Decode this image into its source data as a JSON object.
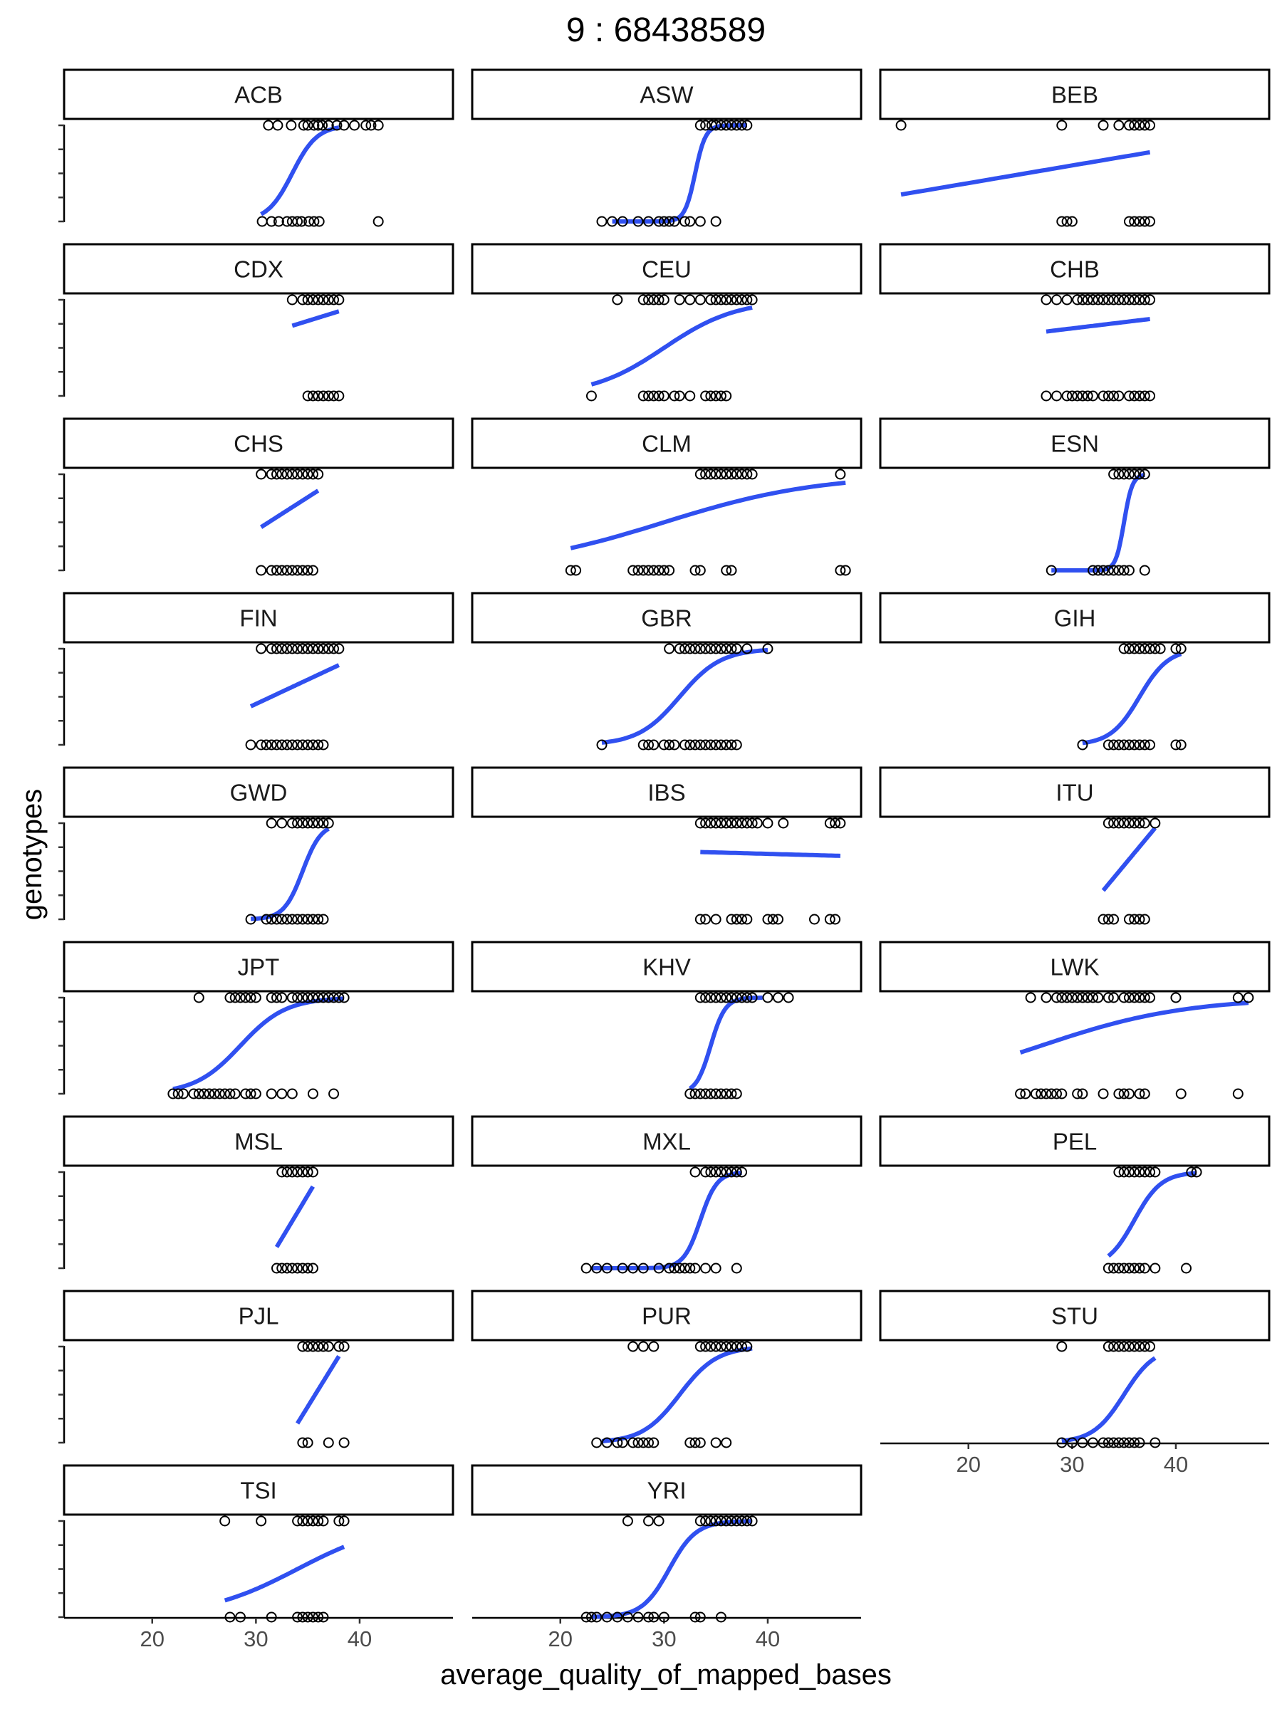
{
  "chart_data": {
    "type": "scatter",
    "title": "9 : 68438589",
    "xlabel": "average_quality_of_mapped_bases",
    "ylabel": "genotypes",
    "xlim": [
      11.5,
      49
    ],
    "x_ticks": [
      20,
      30,
      40
    ],
    "x_tick_labels": [
      "20",
      "30",
      "40"
    ],
    "facet_layout": {
      "ncol": 3,
      "nrow": 9
    },
    "panels": [
      {
        "name": "ACB",
        "fit": [
          30.5,
          38.0
        ],
        "fit_shape": "sigmoid",
        "fit_mid": 33.5,
        "fit_scale": 1.2,
        "x_top": [
          31.2,
          32.1,
          33.4,
          34.6,
          35.0,
          35.6,
          36.0,
          36.4,
          37.0,
          37.8,
          38.5,
          39.5,
          40.6,
          41.1,
          41.8
        ],
        "x_bottom": [
          30.6,
          31.5,
          32.2,
          33.0,
          33.5,
          34.0,
          34.4,
          35.1,
          35.6,
          36.1,
          41.8
        ]
      },
      {
        "name": "ASW",
        "fit": [
          25.0,
          38.0
        ],
        "fit_shape": "sigmoid",
        "fit_mid": 33.0,
        "fit_scale": 0.5,
        "x_top": [
          33.5,
          34.0,
          34.6,
          35.0,
          35.5,
          36.0,
          36.5,
          37.0,
          37.5,
          38.0
        ],
        "x_bottom": [
          24.0,
          25.0,
          26.0,
          27.5,
          28.5,
          29.5,
          30.0,
          30.5,
          31.0,
          32.0,
          32.5,
          33.5,
          35.0
        ]
      },
      {
        "name": "BEB",
        "fit": [
          13.5,
          37.5
        ],
        "fit_shape": "linear",
        "y0": 0.28,
        "y1": 0.72,
        "x_top": [
          13.5,
          29.0,
          33.0,
          34.5,
          35.5,
          36.0,
          36.5,
          37.0,
          37.5
        ],
        "x_bottom": [
          29.0,
          29.5,
          30.0,
          35.5,
          36.0,
          36.5,
          37.0,
          37.5
        ]
      },
      {
        "name": "CDX",
        "fit": [
          33.5,
          38.0
        ],
        "fit_shape": "linear",
        "y0": 0.73,
        "y1": 0.88,
        "x_top": [
          33.5,
          34.5,
          35.0,
          35.5,
          36.0,
          36.5,
          37.0,
          37.5,
          38.0
        ],
        "x_bottom": [
          35.0,
          35.5,
          36.0,
          36.5,
          37.0,
          37.5,
          38.0
        ]
      },
      {
        "name": "CEU",
        "fit": [
          23.0,
          38.5
        ],
        "fit_shape": "sigmoid",
        "fit_mid": 30.0,
        "fit_scale": 3.5,
        "x_top": [
          25.5,
          28.0,
          28.5,
          29.0,
          29.5,
          30.0,
          31.5,
          32.5,
          33.5,
          34.5,
          35.0,
          35.5,
          36.0,
          36.5,
          37.0,
          37.5,
          38.0,
          38.5
        ],
        "x_bottom": [
          23.0,
          28.0,
          28.5,
          29.0,
          29.5,
          30.0,
          31.0,
          31.5,
          32.5,
          34.0,
          34.5,
          35.0,
          35.5,
          36.0
        ]
      },
      {
        "name": "CHB",
        "fit": [
          27.5,
          37.5
        ],
        "fit_shape": "linear",
        "y0": 0.67,
        "y1": 0.8,
        "x_top": [
          27.5,
          28.5,
          29.5,
          30.5,
          31.0,
          31.5,
          32.0,
          32.5,
          33.0,
          33.5,
          34.0,
          34.5,
          35.0,
          35.5,
          36.0,
          36.5,
          37.0,
          37.5
        ],
        "x_bottom": [
          27.5,
          28.5,
          29.5,
          30.0,
          30.5,
          31.0,
          31.5,
          32.0,
          33.0,
          33.5,
          34.0,
          34.5,
          35.5,
          36.0,
          36.5,
          37.0,
          37.5
        ]
      },
      {
        "name": "CHS",
        "fit": [
          30.5,
          36.0
        ],
        "fit_shape": "linear",
        "y0": 0.45,
        "y1": 0.83,
        "x_top": [
          30.5,
          31.5,
          32.0,
          32.5,
          33.0,
          33.5,
          34.0,
          34.5,
          35.0,
          35.5,
          36.0
        ],
        "x_bottom": [
          30.5,
          31.5,
          32.0,
          32.5,
          33.0,
          33.5,
          34.0,
          34.5,
          35.0,
          35.5
        ]
      },
      {
        "name": "CLM",
        "fit": [
          21.0,
          47.5
        ],
        "fit_shape": "sigmoid",
        "fit_mid": 30.0,
        "fit_scale": 7.5,
        "x_top": [
          33.5,
          34.0,
          34.5,
          35.0,
          35.5,
          36.0,
          36.5,
          37.0,
          37.5,
          38.0,
          38.5,
          47.0
        ],
        "x_bottom": [
          21.0,
          21.5,
          27.0,
          27.5,
          28.0,
          28.5,
          29.0,
          29.5,
          30.0,
          30.5,
          33.0,
          33.5,
          36.0,
          36.5,
          47.0,
          47.5
        ]
      },
      {
        "name": "ESN",
        "fit": [
          28.0,
          37.0
        ],
        "fit_shape": "sigmoid",
        "fit_mid": 35.0,
        "fit_scale": 0.4,
        "x_top": [
          34.0,
          34.5,
          35.0,
          35.5,
          36.0,
          36.5,
          37.0
        ],
        "x_bottom": [
          28.0,
          32.0,
          32.5,
          33.0,
          33.5,
          34.0,
          34.5,
          35.0,
          35.5,
          37.0
        ]
      },
      {
        "name": "FIN",
        "fit": [
          29.5,
          38.0
        ],
        "fit_shape": "linear",
        "y0": 0.4,
        "y1": 0.83,
        "x_top": [
          30.5,
          31.5,
          32.0,
          32.5,
          33.0,
          33.5,
          34.0,
          34.5,
          35.0,
          35.5,
          36.0,
          36.5,
          37.0,
          37.5,
          38.0
        ],
        "x_bottom": [
          29.5,
          30.5,
          31.0,
          31.5,
          32.0,
          32.5,
          33.0,
          33.5,
          34.0,
          34.5,
          35.0,
          35.5,
          36.0,
          36.5
        ]
      },
      {
        "name": "GBR",
        "fit": [
          24.0,
          40.0
        ],
        "fit_shape": "sigmoid",
        "fit_mid": 31.5,
        "fit_scale": 2.0,
        "x_top": [
          30.5,
          31.5,
          32.0,
          32.5,
          33.0,
          33.5,
          34.0,
          34.5,
          35.0,
          35.5,
          36.0,
          36.5,
          37.0,
          38.0,
          40.0
        ],
        "x_bottom": [
          24.0,
          28.0,
          28.5,
          29.0,
          30.0,
          30.5,
          31.0,
          32.0,
          32.5,
          33.0,
          33.5,
          34.0,
          34.5,
          35.0,
          35.5,
          36.0,
          36.5,
          37.0
        ]
      },
      {
        "name": "GIH",
        "fit": [
          31.0,
          40.5
        ],
        "fit_shape": "sigmoid",
        "fit_mid": 36.5,
        "fit_scale": 1.4,
        "x_top": [
          35.0,
          35.5,
          36.0,
          36.5,
          37.0,
          37.5,
          38.0,
          38.5,
          40.0,
          40.5
        ],
        "x_bottom": [
          31.0,
          33.5,
          34.0,
          34.5,
          35.0,
          35.5,
          36.0,
          36.5,
          37.0,
          37.5,
          40.0,
          40.5
        ]
      },
      {
        "name": "GWD",
        "fit": [
          29.5,
          37.0
        ],
        "fit_shape": "sigmoid",
        "fit_mid": 34.5,
        "fit_scale": 0.9,
        "x_top": [
          31.5,
          32.5,
          33.5,
          34.0,
          34.5,
          35.0,
          35.5,
          36.0,
          36.5,
          37.0
        ],
        "x_bottom": [
          29.5,
          31.0,
          31.5,
          32.0,
          32.5,
          33.0,
          33.5,
          34.0,
          34.5,
          35.0,
          35.5,
          36.0,
          36.5
        ]
      },
      {
        "name": "IBS",
        "fit": [
          33.5,
          47.0
        ],
        "fit_shape": "linear",
        "y0": 0.7,
        "y1": 0.66,
        "x_top": [
          33.5,
          34.0,
          34.5,
          35.0,
          35.5,
          36.0,
          36.5,
          37.0,
          37.5,
          38.0,
          38.5,
          39.0,
          40.0,
          41.5,
          46.0,
          46.5,
          47.0
        ],
        "x_bottom": [
          33.5,
          34.0,
          35.0,
          36.5,
          37.0,
          37.5,
          38.0,
          40.0,
          40.5,
          41.0,
          44.5,
          46.0,
          46.5
        ]
      },
      {
        "name": "ITU",
        "fit": [
          33.0,
          38.0
        ],
        "fit_shape": "linear",
        "y0": 0.3,
        "y1": 0.95,
        "x_top": [
          33.5,
          34.0,
          34.5,
          35.0,
          35.5,
          36.0,
          36.5,
          37.0,
          38.0
        ],
        "x_bottom": [
          33.0,
          33.5,
          34.0,
          35.5,
          36.0,
          36.5,
          37.0
        ]
      },
      {
        "name": "JPT",
        "fit": [
          22.0,
          38.5
        ],
        "fit_shape": "sigmoid",
        "fit_mid": 28.5,
        "fit_scale": 2.2,
        "x_top": [
          24.5,
          27.5,
          28.0,
          28.5,
          29.0,
          29.5,
          30.0,
          31.5,
          32.0,
          32.5,
          33.5,
          34.0,
          34.5,
          35.0,
          35.5,
          36.0,
          36.5,
          37.0,
          37.5,
          38.0,
          38.5
        ],
        "x_bottom": [
          22.0,
          22.5,
          23.0,
          24.0,
          24.5,
          25.0,
          25.5,
          26.0,
          26.5,
          27.0,
          27.5,
          28.0,
          29.0,
          29.5,
          30.0,
          31.5,
          32.5,
          33.5,
          35.5,
          37.5
        ]
      },
      {
        "name": "KHV",
        "fit": [
          32.5,
          39.5
        ],
        "fit_shape": "sigmoid",
        "fit_mid": 34.5,
        "fit_scale": 0.7,
        "x_top": [
          33.5,
          34.0,
          34.5,
          35.0,
          35.5,
          36.0,
          36.5,
          37.0,
          37.5,
          38.0,
          38.5,
          40.0,
          41.0,
          42.0
        ],
        "x_bottom": [
          32.5,
          33.0,
          33.5,
          34.0,
          34.5,
          35.0,
          35.5,
          36.0,
          36.5,
          37.0
        ]
      },
      {
        "name": "LWK",
        "fit": [
          25.0,
          47.0
        ],
        "fit_shape": "sigmoid",
        "fit_mid": 27.0,
        "fit_scale": 7.0,
        "x_top": [
          26.0,
          27.5,
          28.5,
          29.0,
          29.5,
          30.0,
          30.5,
          31.0,
          31.5,
          32.0,
          32.5,
          33.5,
          34.0,
          35.0,
          35.5,
          36.0,
          36.5,
          37.0,
          37.5,
          40.0,
          46.0,
          47.0
        ],
        "x_bottom": [
          25.0,
          25.5,
          26.5,
          27.0,
          27.5,
          28.0,
          28.5,
          29.0,
          30.5,
          31.0,
          33.0,
          34.5,
          35.0,
          35.5,
          36.5,
          37.0,
          40.5,
          46.0
        ]
      },
      {
        "name": "MSL",
        "fit": [
          32.0,
          35.5
        ],
        "fit_shape": "linear",
        "y0": 0.22,
        "y1": 0.85,
        "x_top": [
          32.5,
          33.0,
          33.5,
          34.0,
          34.5,
          35.0,
          35.5
        ],
        "x_bottom": [
          32.0,
          32.5,
          33.0,
          33.5,
          34.0,
          34.5,
          35.0,
          35.5
        ]
      },
      {
        "name": "MXL",
        "fit": [
          23.0,
          37.5
        ],
        "fit_shape": "sigmoid",
        "fit_mid": 33.5,
        "fit_scale": 0.8,
        "x_top": [
          33.0,
          34.0,
          34.5,
          35.0,
          35.5,
          36.0,
          36.5,
          37.0,
          37.5
        ],
        "x_bottom": [
          22.5,
          23.5,
          24.5,
          26.0,
          27.0,
          28.0,
          29.5,
          30.5,
          31.0,
          31.5,
          32.0,
          32.5,
          33.0,
          34.0,
          35.0,
          37.0
        ]
      },
      {
        "name": "PEL",
        "fit": [
          33.5,
          42.0
        ],
        "fit_shape": "sigmoid",
        "fit_mid": 36.0,
        "fit_scale": 1.3,
        "x_top": [
          34.5,
          35.0,
          35.5,
          36.0,
          36.5,
          37.0,
          37.5,
          38.0,
          41.5,
          42.0
        ],
        "x_bottom": [
          33.5,
          34.0,
          34.5,
          35.0,
          35.5,
          36.0,
          36.5,
          37.0,
          38.0,
          41.0
        ]
      },
      {
        "name": "PJL",
        "fit": [
          34.0,
          38.0
        ],
        "fit_shape": "linear",
        "y0": 0.2,
        "y1": 0.9,
        "x_top": [
          34.5,
          35.0,
          35.5,
          36.0,
          36.5,
          37.0,
          38.0,
          38.5
        ],
        "x_bottom": [
          34.5,
          35.0,
          37.0,
          38.5
        ]
      },
      {
        "name": "PUR",
        "fit": [
          24.0,
          38.5
        ],
        "fit_shape": "sigmoid",
        "fit_mid": 31.5,
        "fit_scale": 1.8,
        "x_top": [
          27.0,
          28.0,
          29.0,
          33.5,
          34.0,
          34.5,
          35.0,
          35.5,
          36.0,
          36.5,
          37.0,
          37.5,
          38.0
        ],
        "x_bottom": [
          23.5,
          24.5,
          25.5,
          26.0,
          27.0,
          27.5,
          28.0,
          28.5,
          29.0,
          32.5,
          33.0,
          33.5,
          35.0,
          36.0
        ]
      },
      {
        "name": "STU",
        "fit": [
          29.0,
          38.0
        ],
        "fit_shape": "sigmoid",
        "fit_mid": 35.0,
        "fit_scale": 1.5,
        "x_top": [
          29.0,
          33.5,
          34.0,
          34.5,
          35.0,
          35.5,
          36.0,
          36.5,
          37.0,
          37.5
        ],
        "x_bottom": [
          29.0,
          30.0,
          31.0,
          32.0,
          33.0,
          33.5,
          34.0,
          34.5,
          35.0,
          35.5,
          36.0,
          36.5,
          38.0
        ]
      },
      {
        "name": "TSI",
        "fit": [
          27.0,
          38.5
        ],
        "fit_shape": "sigmoid",
        "fit_mid": 34.0,
        "fit_scale": 4.5,
        "x_top": [
          27.0,
          30.5,
          34.0,
          34.5,
          35.0,
          35.5,
          36.0,
          36.5,
          38.0,
          38.5
        ],
        "x_bottom": [
          27.5,
          28.5,
          31.5,
          34.0,
          34.5,
          35.0,
          35.5,
          36.0,
          36.5
        ]
      },
      {
        "name": "YRI",
        "fit": [
          23.0,
          38.5
        ],
        "fit_shape": "sigmoid",
        "fit_mid": 30.5,
        "fit_scale": 1.3,
        "x_top": [
          26.5,
          28.5,
          29.5,
          33.5,
          34.0,
          34.5,
          35.0,
          35.5,
          36.0,
          36.5,
          37.0,
          37.5,
          38.0,
          38.5
        ],
        "x_bottom": [
          22.5,
          23.0,
          23.5,
          24.5,
          25.5,
          26.5,
          27.5,
          28.5,
          29.0,
          30.0,
          33.0,
          33.5,
          35.5
        ]
      }
    ]
  }
}
